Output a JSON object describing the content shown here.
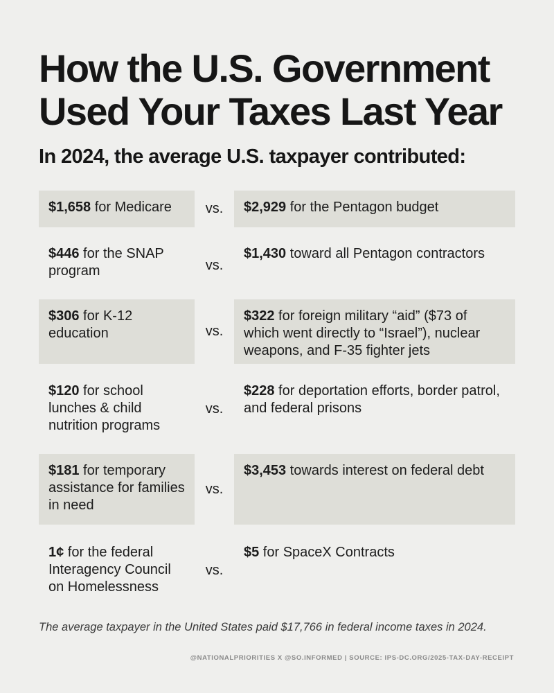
{
  "title": "How the U.S. Government Used Your Taxes Last Year",
  "subtitle": "In 2024, the average U.S. taxpayer contributed:",
  "vs_label": "vs.",
  "rows": [
    {
      "left": {
        "amount": "$1,658",
        "text": " for Medicare"
      },
      "right": {
        "amount": "$2,929",
        "text": " for the Pentagon budget"
      }
    },
    {
      "left": {
        "amount": "$446",
        "text": " for the SNAP program"
      },
      "right": {
        "amount": "$1,430",
        "text": " toward all Pentagon contractors"
      }
    },
    {
      "left": {
        "amount": "$306",
        "text": " for K-12 education"
      },
      "right": {
        "amount": "$322",
        "text": " for foreign military “aid” ($73 of which went directly to “Israel”), nuclear weapons, and F-35 fighter jets"
      }
    },
    {
      "left": {
        "amount": "$120",
        "text": " for school lunches & child nutrition programs"
      },
      "right": {
        "amount": "$228",
        "text": " for deportation efforts, border patrol, and federal prisons"
      }
    },
    {
      "left": {
        "amount": "$181",
        "text": " for temporary assistance for families in need"
      },
      "right": {
        "amount": "$3,453",
        "text": " towards interest on federal debt"
      }
    },
    {
      "left": {
        "amount": "1¢",
        "text": " for the federal Interagency Council on Homelessness"
      },
      "right": {
        "amount": "$5",
        "text": " for SpaceX Contracts"
      }
    }
  ],
  "footnote": "The average taxpayer in the United States paid $17,766 in federal income taxes in 2024.",
  "credits": "@NATIONALPRIORITIES X @SO.INFORMED | SOURCE: IPS-DC.ORG/2025-TAX-DAY-RECEIPT"
}
